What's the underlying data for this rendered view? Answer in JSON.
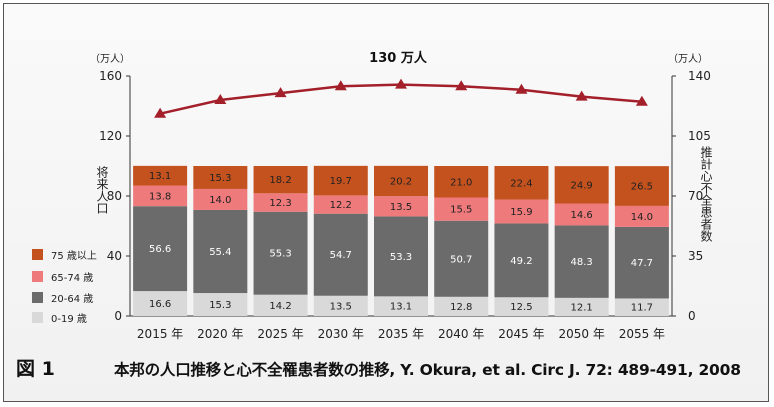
{
  "caption": {
    "figure_label": "図 1",
    "text": "本邦の人口推移と心不全罹患者数の推移, Y. Okura, et al. Circ J. 72: 489-491, 2008"
  },
  "chart_data": {
    "type": "bar",
    "stacked": true,
    "categories": [
      "2015 年",
      "2020 年",
      "2025 年",
      "2030 年",
      "2035 年",
      "2040 年",
      "2045 年",
      "2050 年",
      "2055 年"
    ],
    "series": [
      {
        "name": "0-19 歳",
        "color": "#d9d9d9",
        "values": [
          16.6,
          15.3,
          14.2,
          13.5,
          13.1,
          12.8,
          12.5,
          12.1,
          11.7
        ]
      },
      {
        "name": "20-64 歳",
        "color": "#6b6b6b",
        "values": [
          56.6,
          55.4,
          55.3,
          54.7,
          53.3,
          50.7,
          49.2,
          48.3,
          47.7
        ]
      },
      {
        "name": "65-74 歳",
        "color": "#ee7a7c",
        "values": [
          13.8,
          14.0,
          12.3,
          12.2,
          13.5,
          15.5,
          15.9,
          14.6,
          14.0
        ]
      },
      {
        "name": "75 歳以上",
        "color": "#c4521e",
        "values": [
          13.1,
          15.3,
          18.2,
          19.7,
          20.2,
          21.0,
          22.4,
          24.9,
          26.5
        ]
      }
    ],
    "line_series": {
      "color": "#a31f2a",
      "axis": "right",
      "values": [
        118,
        126,
        130,
        134,
        135,
        134,
        132,
        128,
        125
      ]
    },
    "left_axis": {
      "unit": "（万人）",
      "label": "将来人口",
      "ylim": [
        0,
        160
      ],
      "ticks": [
        0,
        40,
        80,
        120,
        160
      ]
    },
    "right_axis": {
      "unit": "（万人）",
      "label": "推計心不全患者数",
      "ylim": [
        0,
        140
      ],
      "ticks": [
        0,
        35,
        70,
        105,
        140
      ]
    },
    "annotation": "130 万人",
    "legend_position": "bottom-left"
  }
}
